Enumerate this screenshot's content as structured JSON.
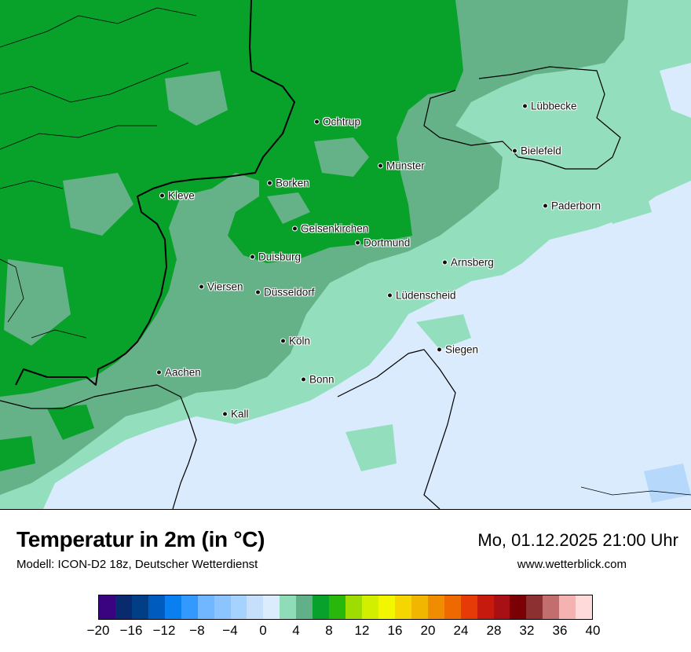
{
  "map": {
    "colors": {
      "dark_green": "#08a12a",
      "mid_green": "#65b289",
      "light_green": "#93dfbd",
      "pale_blue": "#d9ebfd",
      "light_blue": "#b6d8fb",
      "border": "#000000"
    },
    "cities": [
      {
        "name": "Ochtrup"
      },
      {
        "name": "Lübbecke"
      },
      {
        "name": "Bielefeld"
      },
      {
        "name": "Münster"
      },
      {
        "name": "Borken"
      },
      {
        "name": "Kleve"
      },
      {
        "name": "Paderborn"
      },
      {
        "name": "Gelsenkirchen"
      },
      {
        "name": "Dortmund"
      },
      {
        "name": "Duisburg"
      },
      {
        "name": "Arnsberg"
      },
      {
        "name": "Viersen"
      },
      {
        "name": "Düsseldorf"
      },
      {
        "name": "Lüdenscheid"
      },
      {
        "name": "Köln"
      },
      {
        "name": "Siegen"
      },
      {
        "name": "Aachen"
      },
      {
        "name": "Bonn"
      },
      {
        "name": "Kall"
      }
    ]
  },
  "footer": {
    "title": "Temperatur in 2m (in °C)",
    "subtitle": "Modell: ICON-D2 18z, Deutscher Wetterdienst",
    "datetime": "Mo, 01.12.2025 21:00 Uhr",
    "website": "www.wetterblick.com"
  },
  "legend": {
    "min": -20,
    "max": 40,
    "colors": [
      "#3a0480",
      "#0a2a6e",
      "#003f85",
      "#005bbf",
      "#0a80f0",
      "#3399ff",
      "#70b7ff",
      "#8cc4ff",
      "#a6d2ff",
      "#c6e0fb",
      "#dbecfd",
      "#8fdcb8",
      "#62b088",
      "#07a12c",
      "#27b80b",
      "#9edc02",
      "#d2ef00",
      "#f2f600",
      "#f5d600",
      "#f0b600",
      "#f08c00",
      "#ee6a00",
      "#e63a07",
      "#c71a0f",
      "#a81016",
      "#7a0006",
      "#8c3032",
      "#c26e6e",
      "#f4b3b0",
      "#ffdada"
    ],
    "tick_labels": [
      "−20",
      "−16",
      "−12",
      "−8",
      "−4",
      "0",
      "4",
      "8",
      "12",
      "16",
      "20",
      "24",
      "28",
      "32",
      "36",
      "40"
    ]
  }
}
